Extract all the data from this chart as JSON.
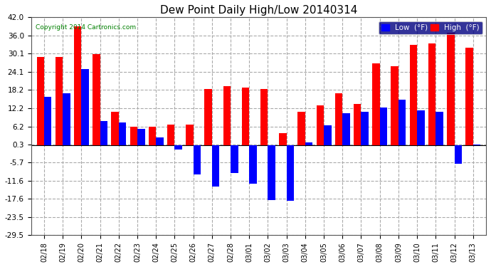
{
  "title": "Dew Point Daily High/Low 20140314",
  "copyright": "Copyright 2014 Cartronics.com",
  "background_color": "#ffffff",
  "plot_bg_color": "#ffffff",
  "grid_color": "#aaaaaa",
  "dates": [
    "02/18",
    "02/19",
    "02/20",
    "02/21",
    "02/22",
    "02/23",
    "02/24",
    "02/25",
    "02/26",
    "02/27",
    "02/28",
    "03/01",
    "03/02",
    "03/03",
    "03/04",
    "03/05",
    "03/06",
    "03/07",
    "03/08",
    "03/09",
    "03/10",
    "03/11",
    "03/12",
    "03/13"
  ],
  "high_values": [
    29.0,
    29.0,
    39.0,
    30.0,
    11.0,
    6.2,
    6.2,
    6.8,
    6.8,
    18.5,
    19.5,
    19.0,
    18.5,
    4.0,
    11.0,
    13.0,
    17.0,
    13.5,
    27.0,
    26.0,
    33.0,
    33.5,
    37.0,
    32.0
  ],
  "low_values": [
    16.0,
    17.0,
    25.0,
    8.0,
    7.5,
    5.5,
    2.5,
    -1.5,
    -9.5,
    -13.5,
    -9.0,
    -12.5,
    -18.0,
    -18.2,
    1.0,
    6.5,
    10.5,
    11.0,
    12.5,
    15.0,
    11.5,
    11.0,
    -6.0,
    0.3
  ],
  "high_color": "#ff0000",
  "low_color": "#0000ff",
  "ylim_min": -29.5,
  "ylim_max": 42.0,
  "yticks": [
    42.0,
    36.0,
    30.1,
    24.1,
    18.2,
    12.2,
    6.2,
    0.3,
    -5.7,
    -11.6,
    -17.6,
    -23.5,
    -29.5
  ],
  "ytick_labels": [
    "42.0",
    "36.0",
    "30.1",
    "24.1",
    "18.2",
    "12.2",
    "6.2",
    "0.3",
    "-5.7",
    "-11.6",
    "-17.6",
    "-23.5",
    "-29.5"
  ],
  "bar_width": 0.4,
  "legend_low_label": "Low  (°F)",
  "legend_high_label": "High  (°F)",
  "figwidth": 6.9,
  "figheight": 3.75,
  "dpi": 100
}
